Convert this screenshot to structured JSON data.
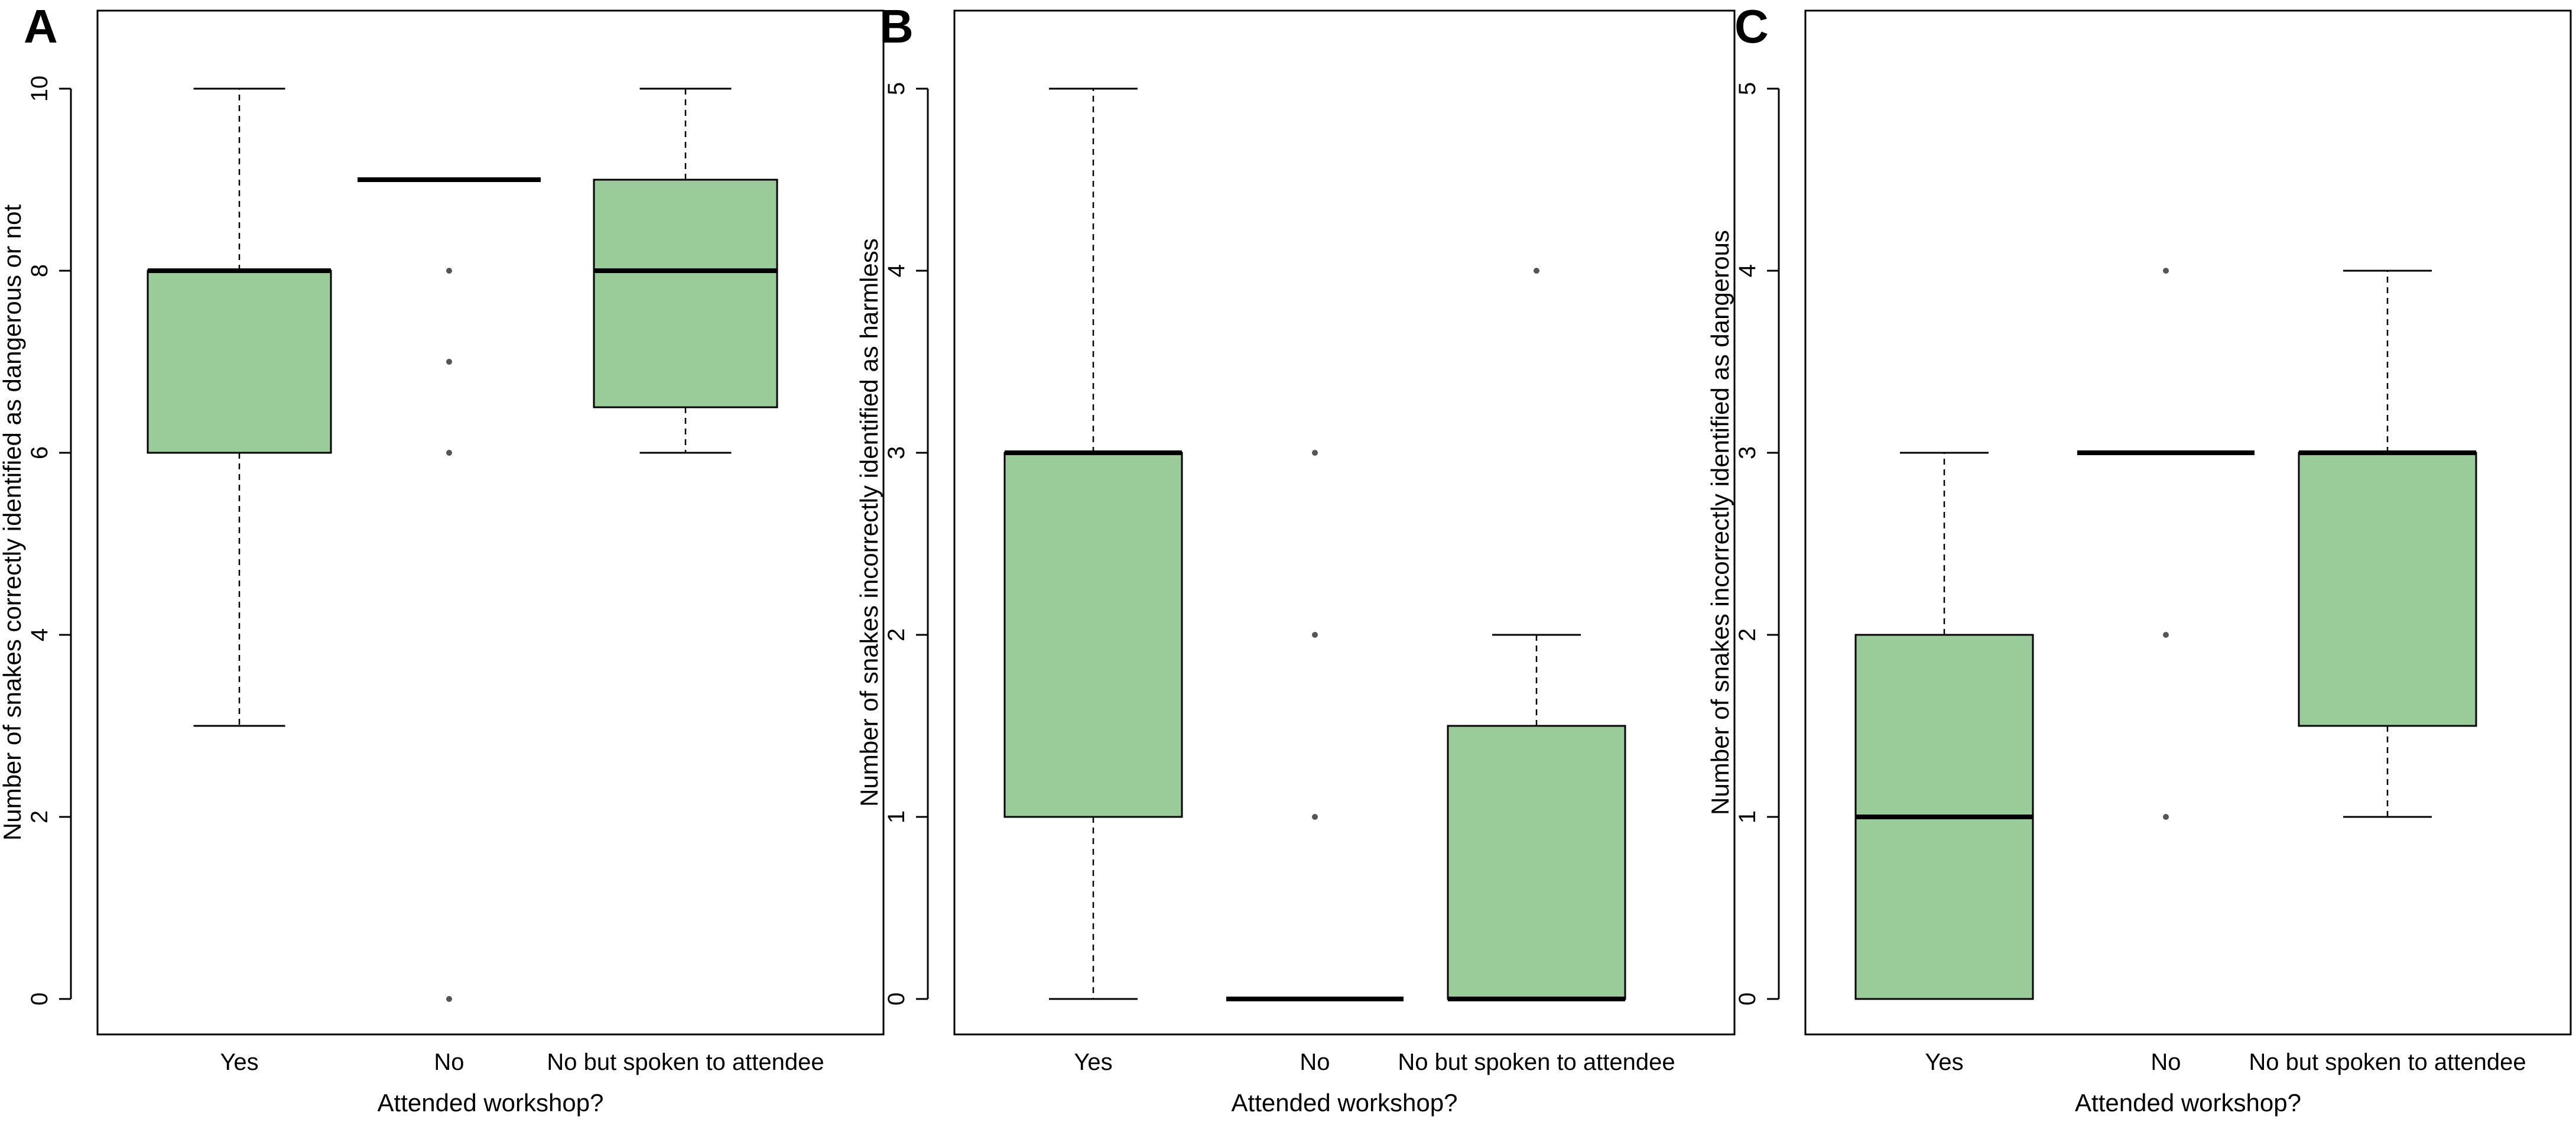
{
  "chart_data": [
    {
      "panel": "A",
      "type": "boxplot",
      "xlabel": "Attended workshop?",
      "ylabel": "Number of snakes correctly identified as dangerous or not",
      "categories": [
        "Yes",
        "No",
        "No but spoken to attendee"
      ],
      "ylim": [
        0,
        10
      ],
      "yticks": [
        "0",
        "2",
        "4",
        "6",
        "8",
        "10"
      ],
      "box_color": "#99cc99",
      "boxes": [
        {
          "category": "Yes",
          "min": 3,
          "q1": 6,
          "median": 8,
          "q3": 8,
          "max": 10,
          "outliers": []
        },
        {
          "category": "No",
          "min": 9,
          "q1": 9,
          "median": 9,
          "q3": 9,
          "max": 9,
          "outliers": [
            8,
            7,
            6,
            0
          ]
        },
        {
          "category": "No but spoken to attendee",
          "min": 6,
          "q1": 6.5,
          "median": 8,
          "q3": 9,
          "max": 10,
          "outliers": []
        }
      ]
    },
    {
      "panel": "B",
      "type": "boxplot",
      "xlabel": "Attended workshop?",
      "ylabel": "Number of snakes incorrectly identified as harmless",
      "categories": [
        "Yes",
        "No",
        "No but spoken to attendee"
      ],
      "ylim": [
        0,
        5
      ],
      "yticks": [
        "0",
        "1",
        "2",
        "3",
        "4",
        "5"
      ],
      "box_color": "#99cc99",
      "boxes": [
        {
          "category": "Yes",
          "min": 0,
          "q1": 1,
          "median": 3,
          "q3": 3,
          "max": 5,
          "outliers": []
        },
        {
          "category": "No",
          "min": 0,
          "q1": 0,
          "median": 0,
          "q3": 0,
          "max": 0,
          "outliers": [
            3,
            2,
            1
          ]
        },
        {
          "category": "No but spoken to attendee",
          "min": 0,
          "q1": 0,
          "median": 0,
          "q3": 1.5,
          "max": 2,
          "outliers": [
            4
          ]
        }
      ]
    },
    {
      "panel": "C",
      "type": "boxplot",
      "xlabel": "Attended workshop?",
      "ylabel": "Number of snakes incorrectly identified as dangerous",
      "categories": [
        "Yes",
        "No",
        "No but spoken to attendee"
      ],
      "ylim": [
        0,
        5
      ],
      "yticks": [
        "0",
        "1",
        "2",
        "3",
        "4",
        "5"
      ],
      "box_color": "#99cc99",
      "boxes": [
        {
          "category": "Yes",
          "min": 0,
          "q1": 0,
          "median": 1,
          "q3": 2,
          "max": 3,
          "outliers": []
        },
        {
          "category": "No",
          "min": 3,
          "q1": 3,
          "median": 3,
          "q3": 3,
          "max": 3,
          "outliers": [
            4,
            2,
            1
          ]
        },
        {
          "category": "No but spoken to attendee",
          "min": 1,
          "q1": 1.5,
          "median": 3,
          "q3": 3,
          "max": 4,
          "outliers": []
        }
      ]
    }
  ]
}
